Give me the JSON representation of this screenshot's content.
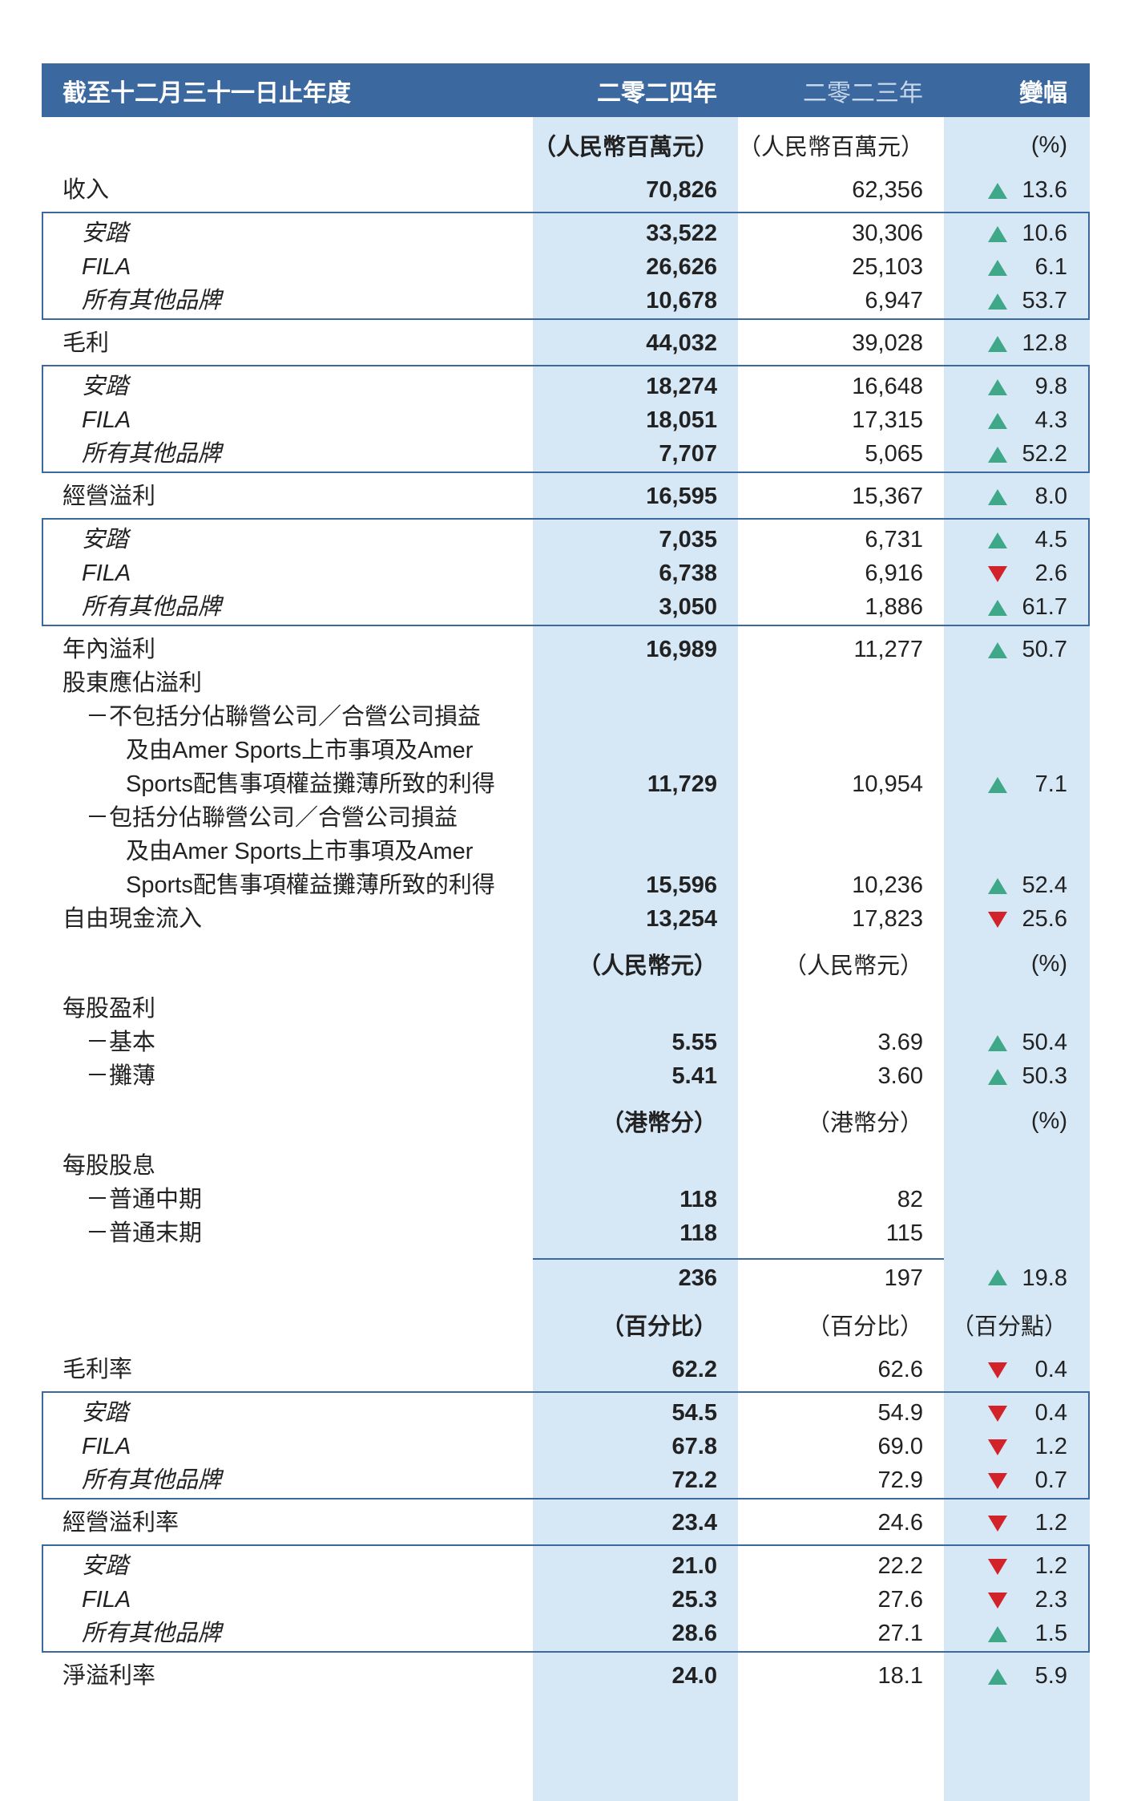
{
  "header": {
    "title": "截至十二月三十一日止年度",
    "col1": "二零二四年",
    "col2": "二零二三年",
    "col3": "變幅"
  },
  "rows": [
    {
      "kind": "unit",
      "v1": "（人民幣百萬元）",
      "v2": "（人民幣百萬元）",
      "change": "(%)"
    },
    {
      "label": "收入",
      "v1": "70,826",
      "v2": "62,356",
      "trend": "up",
      "change": "13.6"
    },
    {
      "boxed": [
        {
          "label": "安踏",
          "v1": "33,522",
          "v2": "30,306",
          "trend": "up",
          "change": "10.6"
        },
        {
          "label": "FILA",
          "v1": "26,626",
          "v2": "25,103",
          "trend": "up",
          "change": "6.1"
        },
        {
          "label": "所有其他品牌",
          "v1": "10,678",
          "v2": "6,947",
          "trend": "up",
          "change": "53.7"
        }
      ]
    },
    {
      "label": "毛利",
      "v1": "44,032",
      "v2": "39,028",
      "trend": "up",
      "change": "12.8"
    },
    {
      "boxed": [
        {
          "label": "安踏",
          "v1": "18,274",
          "v2": "16,648",
          "trend": "up",
          "change": "9.8"
        },
        {
          "label": "FILA",
          "v1": "18,051",
          "v2": "17,315",
          "trend": "up",
          "change": "4.3"
        },
        {
          "label": "所有其他品牌",
          "v1": "7,707",
          "v2": "5,065",
          "trend": "up",
          "change": "52.2"
        }
      ]
    },
    {
      "label": "經營溢利",
      "v1": "16,595",
      "v2": "15,367",
      "trend": "up",
      "change": "8.0"
    },
    {
      "boxed": [
        {
          "label": "安踏",
          "v1": "7,035",
          "v2": "6,731",
          "trend": "up",
          "change": "4.5"
        },
        {
          "label": "FILA",
          "v1": "6,738",
          "v2": "6,916",
          "trend": "down",
          "change": "2.6"
        },
        {
          "label": "所有其他品牌",
          "v1": "3,050",
          "v2": "1,886",
          "trend": "up",
          "change": "61.7"
        }
      ]
    },
    {
      "label": "年內溢利",
      "v1": "16,989",
      "v2": "11,277",
      "trend": "up",
      "change": "50.7"
    },
    {
      "label": "股東應佔溢利"
    },
    {
      "kind": "sub",
      "lines": [
        "－不包括分佔聯營公司／合營公司損益",
        "及由Amer Sports上市事項及Amer",
        "Sports配售事項權益攤薄所致的利得"
      ],
      "v1": "11,729",
      "v2": "10,954",
      "trend": "up",
      "change": "7.1"
    },
    {
      "kind": "sub",
      "lines": [
        "－包括分佔聯營公司／合營公司損益",
        "及由Amer Sports上市事項及Amer",
        "Sports配售事項權益攤薄所致的利得"
      ],
      "v1": "15,596",
      "v2": "10,236",
      "trend": "up",
      "change": "52.4"
    },
    {
      "label": "自由現金流入",
      "v1": "13,254",
      "v2": "17,823",
      "trend": "down",
      "change": "25.6"
    },
    {
      "kind": "unit",
      "v1": "（人民幣元）",
      "v2": "（人民幣元）",
      "change": "(%)"
    },
    {
      "label": "每股盈利"
    },
    {
      "kind": "sub",
      "label": "－基本",
      "v1": "5.55",
      "v2": "3.69",
      "trend": "up",
      "change": "50.4"
    },
    {
      "kind": "sub",
      "label": "－攤薄",
      "v1": "5.41",
      "v2": "3.60",
      "trend": "up",
      "change": "50.3"
    },
    {
      "kind": "unit",
      "v1": "（港幣分）",
      "v2": "（港幣分）",
      "change": "(%)"
    },
    {
      "label": "每股股息"
    },
    {
      "kind": "sub",
      "label": "－普通中期",
      "v1": "118",
      "v2": "82"
    },
    {
      "kind": "sub",
      "label": "－普通末期",
      "v1": "118",
      "v2": "115"
    },
    {
      "kind": "total",
      "v1": "236",
      "v2": "197",
      "trend": "up",
      "change": "19.8"
    },
    {
      "kind": "unit",
      "v1": "（百分比）",
      "v2": "（百分比）",
      "change": "（百分點）"
    },
    {
      "label": "毛利率",
      "v1": "62.2",
      "v2": "62.6",
      "trend": "down",
      "change": "0.4"
    },
    {
      "boxed": [
        {
          "label": "安踏",
          "v1": "54.5",
          "v2": "54.9",
          "trend": "down",
          "change": "0.4"
        },
        {
          "label": "FILA",
          "v1": "67.8",
          "v2": "69.0",
          "trend": "down",
          "change": "1.2"
        },
        {
          "label": "所有其他品牌",
          "v1": "72.2",
          "v2": "72.9",
          "trend": "down",
          "change": "0.7"
        }
      ]
    },
    {
      "label": "經營溢利率",
      "v1": "23.4",
      "v2": "24.6",
      "trend": "down",
      "change": "1.2"
    },
    {
      "boxed": [
        {
          "label": "安踏",
          "v1": "21.0",
          "v2": "22.2",
          "trend": "down",
          "change": "1.2"
        },
        {
          "label": "FILA",
          "v1": "25.3",
          "v2": "27.6",
          "trend": "down",
          "change": "2.3"
        },
        {
          "label": "所有其他品牌",
          "v1": "28.6",
          "v2": "27.1",
          "trend": "up",
          "change": "1.5"
        }
      ]
    },
    {
      "label": "淨溢利率",
      "v1": "24.0",
      "v2": "18.1",
      "trend": "up",
      "change": "5.9"
    }
  ]
}
